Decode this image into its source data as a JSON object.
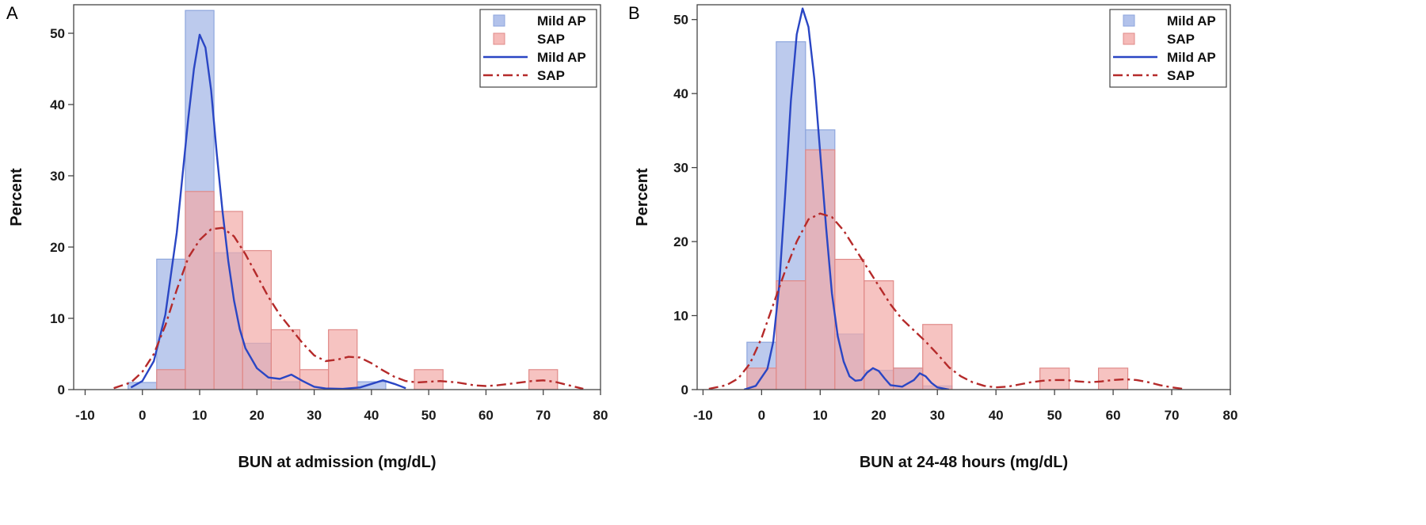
{
  "colors": {
    "mild_fill": "#9fb3e6",
    "mild_edge": "#8ea6dd",
    "mild_line": "#2a46c4",
    "sap_fill": "#f2a9a6",
    "sap_edge": "#e08a88",
    "sap_line": "#b52a2a",
    "frame": "#444444"
  },
  "chart_data": [
    {
      "type": "bar",
      "panel_label": "A",
      "xlabel": "BUN at admission (mg/dL)",
      "ylabel": "Percent",
      "xlim": [
        -12,
        80
      ],
      "ylim": [
        0,
        54
      ],
      "xticks": [
        -10,
        0,
        10,
        20,
        30,
        40,
        50,
        60,
        70,
        80
      ],
      "yticks": [
        0,
        10,
        20,
        30,
        40,
        50
      ],
      "bin_width": 5,
      "legend": [
        "Mild AP",
        "SAP",
        "Mild AP",
        "SAP"
      ],
      "legend_position": "top-right",
      "histograms": [
        {
          "name": "Mild AP",
          "bin_centers": [
            0,
            5,
            10,
            15,
            20,
            25,
            30,
            35,
            40,
            45
          ],
          "values": [
            1,
            18.3,
            53.2,
            19.2,
            6.5,
            1.1,
            0,
            0,
            1.1,
            0
          ]
        },
        {
          "name": "SAP",
          "bin_centers": [
            5,
            10,
            15,
            20,
            25,
            30,
            35,
            40,
            45,
            50,
            55,
            60,
            65,
            70
          ],
          "values": [
            2.8,
            27.8,
            25,
            19.5,
            8.4,
            2.8,
            8.4,
            0,
            0,
            2.8,
            0,
            0,
            0,
            2.8
          ]
        }
      ],
      "curves": [
        {
          "name": "Mild AP",
          "style": "solid",
          "x": [
            -2,
            0,
            2,
            4,
            6,
            8,
            9,
            10,
            11,
            12,
            13,
            14,
            15,
            16,
            17,
            18,
            20,
            22,
            24,
            26,
            28,
            30,
            32,
            35,
            38,
            40,
            42,
            44,
            46
          ],
          "y": [
            0.3,
            1.2,
            4,
            10.5,
            22,
            38,
            45,
            49.8,
            48,
            42,
            33,
            25,
            18,
            12.5,
            8.5,
            5.8,
            3,
            1.7,
            1.5,
            2.1,
            1.2,
            0.4,
            0.15,
            0.1,
            0.3,
            0.8,
            1.3,
            0.8,
            0.2
          ]
        },
        {
          "name": "SAP",
          "style": "dashed",
          "x": [
            -5,
            -2,
            0,
            2,
            4,
            6,
            8,
            10,
            12,
            14,
            16,
            18,
            20,
            22,
            24,
            26,
            28,
            30,
            32,
            34,
            36,
            38,
            40,
            42,
            44,
            46,
            48,
            50,
            52,
            55,
            58,
            60,
            62,
            65,
            68,
            70,
            72,
            75,
            77
          ],
          "y": [
            0.2,
            1,
            2.5,
            5,
            9,
            14,
            18.5,
            21,
            22.5,
            22.7,
            21.5,
            19,
            16,
            13,
            10.5,
            8.5,
            6.5,
            4.8,
            4,
            4.2,
            4.6,
            4.5,
            3.7,
            2.7,
            1.8,
            1.2,
            1,
            1.1,
            1.2,
            1,
            0.6,
            0.5,
            0.6,
            0.9,
            1.2,
            1.3,
            1.1,
            0.5,
            0.1
          ]
        }
      ]
    },
    {
      "type": "bar",
      "panel_label": "B",
      "xlabel": "BUN at 24-48 hours (mg/dL)",
      "ylabel": "Percent",
      "xlim": [
        -11,
        80
      ],
      "ylim": [
        0,
        52
      ],
      "xticks": [
        -10,
        0,
        10,
        20,
        30,
        40,
        50,
        60,
        70,
        80
      ],
      "yticks": [
        0,
        10,
        20,
        30,
        40,
        50
      ],
      "bin_width": 5,
      "legend": [
        "Mild AP",
        "SAP",
        "Mild AP",
        "SAP"
      ],
      "legend_position": "top-right",
      "histograms": [
        {
          "name": "Mild AP",
          "bin_centers": [
            0,
            5,
            10,
            15,
            20,
            25,
            30
          ],
          "values": [
            6.4,
            47,
            35.1,
            7.5,
            2.6,
            2.9,
            0.5
          ]
        },
        {
          "name": "SAP",
          "bin_centers": [
            0,
            5,
            10,
            15,
            20,
            25,
            30,
            35,
            40,
            45,
            50,
            55,
            60
          ],
          "values": [
            2.9,
            14.7,
            32.4,
            17.6,
            14.7,
            2.9,
            8.8,
            0,
            0,
            0,
            2.9,
            0,
            2.9
          ]
        }
      ],
      "curves": [
        {
          "name": "Mild AP",
          "style": "solid",
          "x": [
            -3,
            -1,
            1,
            2,
            3,
            4,
            5,
            6,
            7,
            8,
            9,
            10,
            11,
            12,
            13,
            14,
            15,
            16,
            17,
            18,
            19,
            20,
            21,
            22,
            24,
            26,
            27,
            28,
            29,
            30,
            32
          ],
          "y": [
            0,
            0.5,
            2.8,
            6.5,
            14,
            26,
            39,
            48,
            51.5,
            49,
            42,
            32,
            22,
            13,
            7.2,
            3.8,
            1.8,
            1.2,
            1.3,
            2.3,
            2.9,
            2.5,
            1.5,
            0.6,
            0.4,
            1.3,
            2.2,
            1.8,
            0.9,
            0.3,
            0
          ]
        },
        {
          "name": "SAP",
          "style": "dashed",
          "x": [
            -9,
            -6,
            -4,
            -2,
            0,
            2,
            4,
            6,
            8,
            10,
            12,
            14,
            16,
            18,
            20,
            22,
            24,
            26,
            28,
            30,
            32,
            34,
            36,
            38,
            40,
            42,
            44,
            46,
            48,
            50,
            52,
            54,
            56,
            58,
            60,
            62,
            64,
            66,
            68,
            70,
            72
          ],
          "y": [
            0.1,
            0.6,
            1.5,
            3.5,
            7,
            11.5,
            16,
            20,
            23,
            23.8,
            23.3,
            21.5,
            19,
            16.5,
            14,
            11.5,
            9.5,
            8,
            6.5,
            4.8,
            3,
            1.8,
            1,
            0.5,
            0.3,
            0.4,
            0.7,
            1,
            1.2,
            1.3,
            1.3,
            1.1,
            1,
            1.1,
            1.3,
            1.4,
            1.3,
            1,
            0.6,
            0.3,
            0.1
          ]
        }
      ]
    }
  ]
}
